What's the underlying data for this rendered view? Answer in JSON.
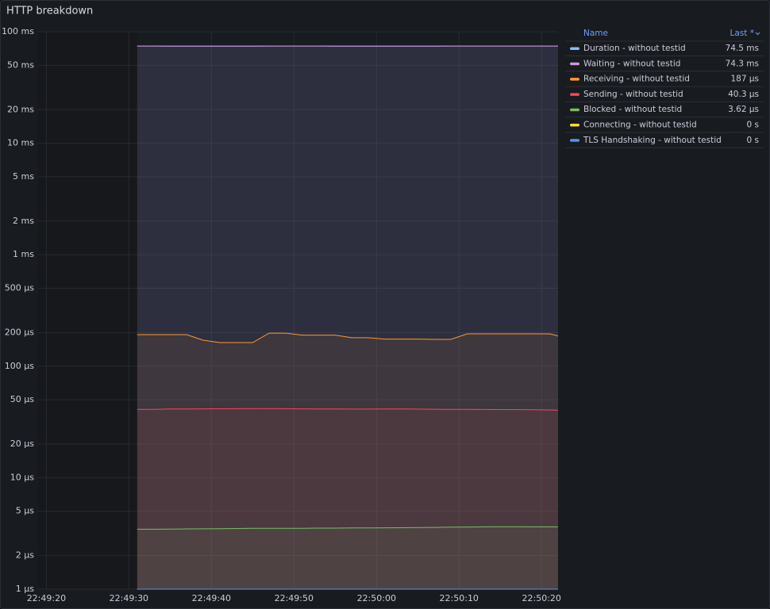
{
  "chart_data": {
    "type": "line",
    "title": "HTTP breakdown",
    "log_scale": true,
    "grid": true,
    "legend_position": "right",
    "legend_columns": [
      "Name",
      "Last *"
    ],
    "x": [
      "22:49:31",
      "22:49:33",
      "22:49:35",
      "22:49:37",
      "22:49:39",
      "22:49:41",
      "22:49:43",
      "22:49:45",
      "22:49:47",
      "22:49:49",
      "22:49:51",
      "22:49:53",
      "22:49:55",
      "22:49:57",
      "22:49:59",
      "22:50:01",
      "22:50:03",
      "22:50:05",
      "22:50:07",
      "22:50:09",
      "22:50:11",
      "22:50:13",
      "22:50:15",
      "22:50:17",
      "22:50:19",
      "22:50:21",
      "22:50:22"
    ],
    "xlim": [
      "22:49:19",
      "22:50:22"
    ],
    "xticks": [
      "22:49:20",
      "22:49:30",
      "22:49:40",
      "22:49:50",
      "22:50:00",
      "22:50:10",
      "22:50:20"
    ],
    "ylim": [
      1e-06,
      0.1
    ],
    "yticks": [
      {
        "value": 0.1,
        "label": "100 ms"
      },
      {
        "value": 0.05,
        "label": "50 ms"
      },
      {
        "value": 0.02,
        "label": "20 ms"
      },
      {
        "value": 0.01,
        "label": "10 ms"
      },
      {
        "value": 0.005,
        "label": "5 ms"
      },
      {
        "value": 0.002,
        "label": "2 ms"
      },
      {
        "value": 0.001,
        "label": "1 ms"
      },
      {
        "value": 0.0005,
        "label": "500 µs"
      },
      {
        "value": 0.0002,
        "label": "200 µs"
      },
      {
        "value": 0.0001,
        "label": "100 µs"
      },
      {
        "value": 5e-05,
        "label": "50 µs"
      },
      {
        "value": 2e-05,
        "label": "20 µs"
      },
      {
        "value": 1e-05,
        "label": "10 µs"
      },
      {
        "value": 5e-06,
        "label": "5 µs"
      },
      {
        "value": 2e-06,
        "label": "2 µs"
      },
      {
        "value": 1e-06,
        "label": "1 µs"
      }
    ],
    "series": [
      {
        "name": "Duration - without testid",
        "color": "#8ab8ff",
        "legend_value": "74.5 ms",
        "values": [
          0.0745,
          0.0745,
          0.0744,
          0.0744,
          0.0743,
          0.0743,
          0.0743,
          0.0744,
          0.0745,
          0.0745,
          0.0745,
          0.0745,
          0.0744,
          0.0744,
          0.0744,
          0.0744,
          0.0744,
          0.0744,
          0.0744,
          0.0745,
          0.0745,
          0.0745,
          0.0745,
          0.0745,
          0.0745,
          0.0745,
          0.0745
        ]
      },
      {
        "name": "Waiting - without testid",
        "color": "#ca95e5",
        "legend_value": "74.3 ms",
        "values": [
          0.0743,
          0.0743,
          0.0742,
          0.0742,
          0.0741,
          0.0741,
          0.0741,
          0.0742,
          0.0743,
          0.0743,
          0.0743,
          0.0743,
          0.0742,
          0.0742,
          0.0742,
          0.0742,
          0.0742,
          0.0742,
          0.0742,
          0.0743,
          0.0743,
          0.0743,
          0.0743,
          0.0743,
          0.0743,
          0.0743,
          0.0743
        ]
      },
      {
        "name": "Receiving - without testid",
        "color": "#ff9830",
        "legend_value": "187 µs",
        "values": [
          0.000192,
          0.000192,
          0.000192,
          0.000192,
          0.000171,
          0.000163,
          0.000163,
          0.000163,
          0.000198,
          0.000198,
          0.00019,
          0.00019,
          0.00019,
          0.00018,
          0.00018,
          0.000175,
          0.000175,
          0.000175,
          0.000174,
          0.000174,
          0.000195,
          0.000195,
          0.000195,
          0.000195,
          0.000195,
          0.000195,
          0.000187
        ]
      },
      {
        "name": "Sending - without testid",
        "color": "#f2495c",
        "legend_value": "40.3 µs",
        "values": [
          4.1e-05,
          4.1e-05,
          4.13e-05,
          4.13e-05,
          4.14e-05,
          4.15e-05,
          4.16e-05,
          4.17e-05,
          4.17e-05,
          4.16e-05,
          4.14e-05,
          4.13e-05,
          4.13e-05,
          4.12e-05,
          4.12e-05,
          4.13e-05,
          4.13e-05,
          4.12e-05,
          4.11e-05,
          4.1e-05,
          4.1e-05,
          4.09e-05,
          4.08e-05,
          4.08e-05,
          4.06e-05,
          4.05e-05,
          4.03e-05
        ]
      },
      {
        "name": "Blocked - without testid",
        "color": "#73bf69",
        "legend_value": "3.62 µs",
        "values": [
          3.45e-06,
          3.45e-06,
          3.46e-06,
          3.47e-06,
          3.48e-06,
          3.49e-06,
          3.5e-06,
          3.51e-06,
          3.52e-06,
          3.52e-06,
          3.52e-06,
          3.53e-06,
          3.53e-06,
          3.54e-06,
          3.54e-06,
          3.55e-06,
          3.56e-06,
          3.57e-06,
          3.58e-06,
          3.6e-06,
          3.61e-06,
          3.62e-06,
          3.63e-06,
          3.63e-06,
          3.62e-06,
          3.62e-06,
          3.62e-06
        ]
      },
      {
        "name": "Connecting - without testid",
        "color": "#fade2a",
        "legend_value": "0 s",
        "values": [
          0,
          0,
          0,
          0,
          0,
          0,
          0,
          0,
          0,
          0,
          0,
          0,
          0,
          0,
          0,
          0,
          0,
          0,
          0,
          0,
          0,
          0,
          0,
          0,
          0,
          0,
          0
        ]
      },
      {
        "name": "TLS Handshaking - without testid",
        "color": "#5794f2",
        "legend_value": "0 s",
        "values": [
          0,
          0,
          0,
          0,
          0,
          0,
          0,
          0,
          0,
          0,
          0,
          0,
          0,
          0,
          0,
          0,
          0,
          0,
          0,
          0,
          0,
          0,
          0,
          0,
          0,
          0,
          0
        ]
      }
    ]
  }
}
